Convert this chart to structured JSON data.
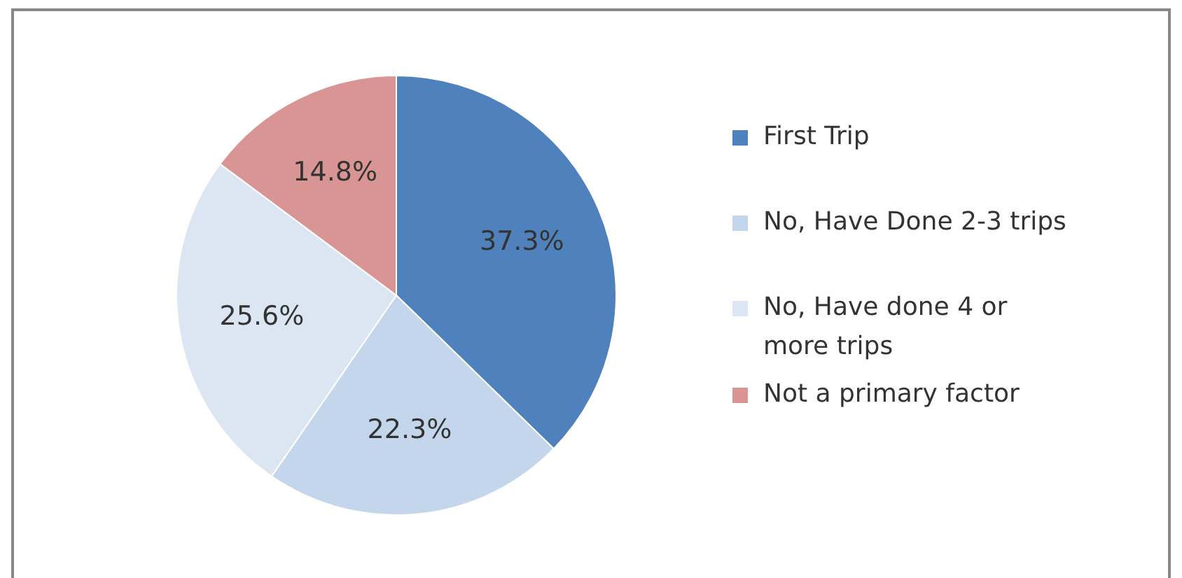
{
  "chart_data": {
    "type": "pie",
    "categories": [
      "First Trip",
      "No, Have Done 2-3 trips",
      "No, Have done 4 or more trips",
      "Not a primary factor"
    ],
    "values": [
      37.3,
      22.3,
      25.6,
      14.8
    ],
    "colors": [
      "#4f81bd",
      "#c3d6ec",
      "#dce6f2",
      "#d99594"
    ],
    "value_labels": [
      "37.3%",
      "22.3%",
      "25.6%",
      "14.8%"
    ],
    "legend": "right"
  }
}
